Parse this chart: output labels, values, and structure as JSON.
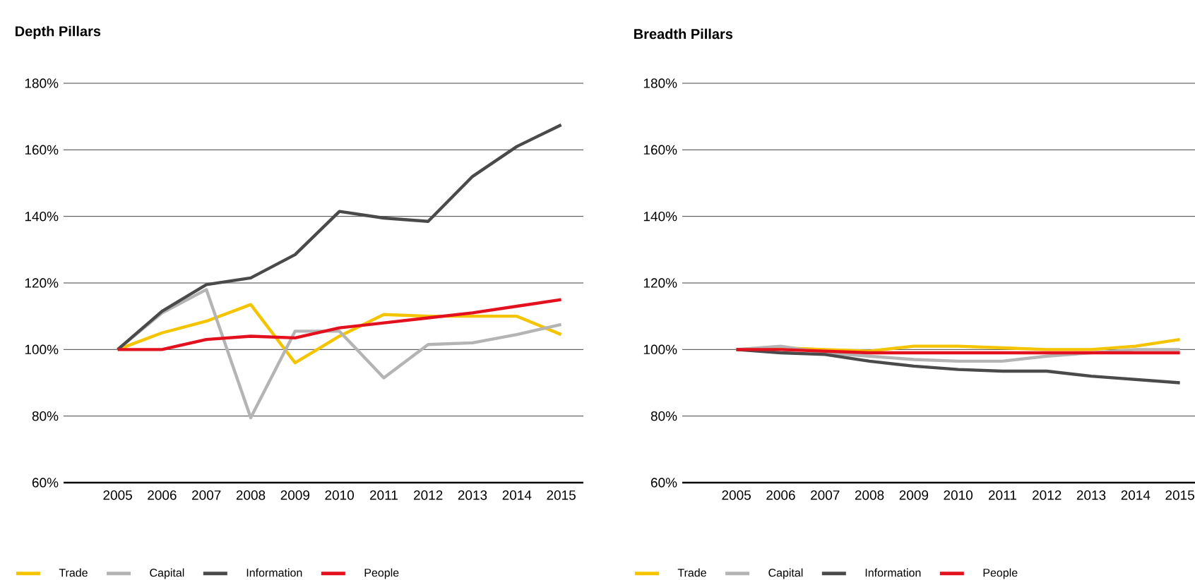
{
  "chart_data": [
    {
      "type": "line",
      "title": "Depth Pillars",
      "categories": [
        "2005",
        "2006",
        "2007",
        "2008",
        "2009",
        "2010",
        "2011",
        "2012",
        "2013",
        "2014",
        "2015"
      ],
      "ylim": [
        60,
        180
      ],
      "yticks": [
        {
          "value": 60,
          "label": "60%"
        },
        {
          "value": 80,
          "label": "80%"
        },
        {
          "value": 100,
          "label": "100%"
        },
        {
          "value": 120,
          "label": "120%"
        },
        {
          "value": 140,
          "label": "140%"
        },
        {
          "value": 160,
          "label": "160%"
        },
        {
          "value": 180,
          "label": "180%"
        }
      ],
      "grid": "y",
      "legend": "bottom",
      "marker": "none",
      "line_style": "solid",
      "series": [
        {
          "name": "Trade",
          "color": "#f5c400",
          "values": [
            100,
            105,
            108.5,
            113.5,
            96,
            104,
            110.5,
            110,
            110,
            110,
            104.5
          ]
        },
        {
          "name": "Capital",
          "color": "#b4b4b4",
          "values": [
            100,
            111,
            118,
            79.5,
            105.5,
            105.5,
            91.5,
            101.5,
            102,
            104.5,
            107.5
          ]
        },
        {
          "name": "Information",
          "color": "#4a4a4a",
          "values": [
            100,
            111.5,
            119.5,
            121.5,
            128.5,
            141.5,
            139.5,
            138.5,
            152,
            161,
            167.5
          ]
        },
        {
          "name": "People",
          "color": "#e3101e",
          "values": [
            100,
            100,
            103,
            104,
            103.5,
            106.5,
            108,
            109.5,
            111,
            113,
            115
          ]
        }
      ]
    },
    {
      "type": "line",
      "title": "Breadth Pillars",
      "categories": [
        "2005",
        "2006",
        "2007",
        "2008",
        "2009",
        "2010",
        "2011",
        "2012",
        "2013",
        "2014",
        "2015"
      ],
      "ylim": [
        60,
        180
      ],
      "yticks": [
        {
          "value": 60,
          "label": "60%"
        },
        {
          "value": 80,
          "label": "80%"
        },
        {
          "value": 100,
          "label": "100%"
        },
        {
          "value": 120,
          "label": "120%"
        },
        {
          "value": 140,
          "label": "140%"
        },
        {
          "value": 160,
          "label": "160%"
        },
        {
          "value": 180,
          "label": "180%"
        }
      ],
      "grid": "y",
      "legend": "bottom",
      "marker": "none",
      "line_style": "solid",
      "series": [
        {
          "name": "Trade",
          "color": "#f5c400",
          "values": [
            100,
            100.5,
            100,
            99.5,
            101,
            101,
            100.5,
            100,
            100,
            101,
            103
          ]
        },
        {
          "name": "Capital",
          "color": "#b4b4b4",
          "values": [
            100,
            101,
            99,
            98,
            97,
            96.5,
            96.5,
            98,
            99,
            100,
            100
          ]
        },
        {
          "name": "Information",
          "color": "#4a4a4a",
          "values": [
            100,
            99,
            98.5,
            96.5,
            95,
            94,
            93.5,
            93.5,
            92,
            91,
            90
          ]
        },
        {
          "name": "People",
          "color": "#e3101e",
          "values": [
            100,
            100,
            99.5,
            99,
            99,
            99,
            99,
            99,
            99,
            99,
            99
          ]
        }
      ]
    }
  ]
}
